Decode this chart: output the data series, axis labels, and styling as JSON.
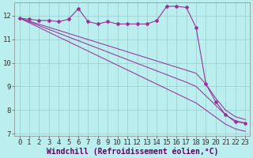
{
  "bg_color": "#bbeeee",
  "line_color": "#993399",
  "x": [
    0,
    1,
    2,
    3,
    4,
    5,
    6,
    7,
    8,
    9,
    10,
    11,
    12,
    13,
    14,
    15,
    16,
    17,
    18,
    19,
    20,
    21,
    22,
    23
  ],
  "y_main": [
    11.9,
    11.85,
    11.8,
    11.8,
    11.75,
    11.85,
    12.3,
    11.75,
    11.65,
    11.75,
    11.65,
    11.65,
    11.65,
    11.65,
    11.8,
    12.4,
    12.4,
    12.35,
    11.5,
    9.1,
    8.35,
    7.8,
    7.5,
    7.45
  ],
  "y_trend1": [
    11.9,
    11.77,
    11.64,
    11.51,
    11.38,
    11.25,
    11.12,
    10.99,
    10.86,
    10.73,
    10.6,
    10.47,
    10.34,
    10.21,
    10.08,
    9.95,
    9.82,
    9.69,
    9.56,
    9.1,
    8.5,
    8.0,
    7.72,
    7.6
  ],
  "y_trend2": [
    11.9,
    11.74,
    11.58,
    11.42,
    11.26,
    11.1,
    10.94,
    10.78,
    10.62,
    10.46,
    10.3,
    10.14,
    9.98,
    9.82,
    9.66,
    9.5,
    9.34,
    9.18,
    9.0,
    8.6,
    8.2,
    7.8,
    7.55,
    7.45
  ],
  "y_trend3": [
    11.9,
    11.7,
    11.5,
    11.3,
    11.1,
    10.9,
    10.7,
    10.5,
    10.3,
    10.1,
    9.9,
    9.7,
    9.5,
    9.3,
    9.1,
    8.9,
    8.7,
    8.5,
    8.3,
    8.0,
    7.7,
    7.4,
    7.2,
    7.1
  ],
  "ylim": [
    6.9,
    12.55
  ],
  "yticks": [
    7,
    8,
    9,
    10,
    11,
    12
  ],
  "xticks": [
    0,
    1,
    2,
    3,
    4,
    5,
    6,
    7,
    8,
    9,
    10,
    11,
    12,
    13,
    14,
    15,
    16,
    17,
    18,
    19,
    20,
    21,
    22,
    23
  ],
  "xlabel": "Windchill (Refroidissement éolien,°C)",
  "grid_color": "#99cccc",
  "xlabel_fontsize": 7,
  "tick_fontsize": 6.5
}
